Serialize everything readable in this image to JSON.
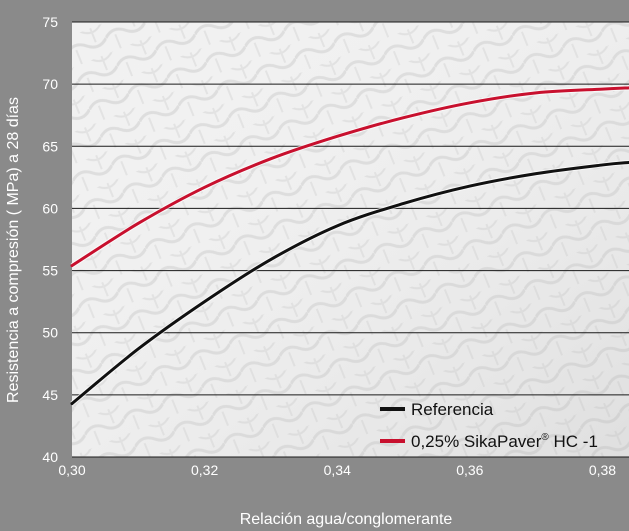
{
  "chart_data": {
    "type": "line",
    "title": "",
    "xlabel": "Relación agua/conglomerante",
    "ylabel": "Resistencia a compresión ( MPa) a 28 días",
    "xlim": [
      0.3,
      0.384
    ],
    "ylim": [
      40,
      75
    ],
    "x_ticks": [
      {
        "value": 0.3,
        "label": "0,30"
      },
      {
        "value": 0.32,
        "label": "0,32"
      },
      {
        "value": 0.34,
        "label": "0,34"
      },
      {
        "value": 0.36,
        "label": "0,36"
      },
      {
        "value": 0.38,
        "label": "0,38"
      }
    ],
    "y_ticks": [
      {
        "value": 40,
        "label": "40"
      },
      {
        "value": 45,
        "label": "45"
      },
      {
        "value": 50,
        "label": "50"
      },
      {
        "value": 55,
        "label": "55"
      },
      {
        "value": 60,
        "label": "60"
      },
      {
        "value": 65,
        "label": "65"
      },
      {
        "value": 70,
        "label": "70"
      },
      {
        "value": 75,
        "label": "75"
      }
    ],
    "grid": "horizontal",
    "legend_position": "bottom-right",
    "series": [
      {
        "name": "Referencia",
        "color": "#111111",
        "x": [
          0.3,
          0.31,
          0.32,
          0.33,
          0.34,
          0.35,
          0.36,
          0.37,
          0.38,
          0.384
        ],
        "y": [
          44.3,
          48.7,
          52.5,
          55.9,
          58.6,
          60.4,
          61.8,
          62.8,
          63.5,
          63.7
        ]
      },
      {
        "name": "0,25% SikaPaver",
        "name_sup": "®",
        "name_suffix": " HC -1",
        "color": "#c8102e",
        "x": [
          0.3,
          0.31,
          0.32,
          0.33,
          0.34,
          0.35,
          0.36,
          0.37,
          0.38,
          0.384
        ],
        "y": [
          55.4,
          58.8,
          61.7,
          64.0,
          65.8,
          67.3,
          68.5,
          69.3,
          69.6,
          69.7
        ]
      }
    ]
  }
}
